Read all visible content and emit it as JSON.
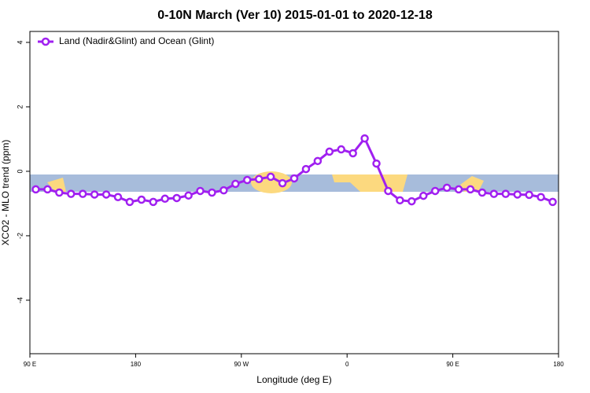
{
  "chart_data": {
    "type": "line",
    "title": "0-10N March (Ver 10)   2015-01-01 to 2020-12-18",
    "xlabel": "Longitude (deg E)",
    "ylabel": "XCO2 - MLO trend (ppm)",
    "x": [
      95,
      105,
      115,
      125,
      135,
      145,
      155,
      165,
      175,
      185,
      195,
      205,
      215,
      225,
      235,
      245,
      255,
      265,
      275,
      285,
      295,
      305,
      315,
      325,
      335,
      345,
      355,
      365,
      375,
      385,
      395,
      405,
      415,
      425,
      435,
      445,
      455,
      465,
      475,
      485,
      495,
      505,
      515,
      525,
      535
    ],
    "series": [
      {
        "name": "Land (Nadir&Glint) and Ocean (Glint)",
        "color": "#a020f0",
        "values": [
          -0.56,
          -0.56,
          -0.66,
          -0.7,
          -0.7,
          -0.72,
          -0.72,
          -0.8,
          -0.95,
          -0.88,
          -0.95,
          -0.85,
          -0.83,
          -0.75,
          -0.61,
          -0.66,
          -0.59,
          -0.39,
          -0.27,
          -0.24,
          -0.17,
          -0.37,
          -0.22,
          0.07,
          0.32,
          0.61,
          0.68,
          0.56,
          1.02,
          0.24,
          -0.61,
          -0.9,
          -0.93,
          -0.76,
          -0.61,
          -0.51,
          -0.56,
          -0.56,
          -0.66,
          -0.7,
          -0.7,
          -0.72,
          -0.73,
          -0.8,
          -0.95
        ]
      }
    ],
    "xlim": [
      90,
      540
    ],
    "xticks": [
      {
        "value": 90,
        "label": "90 E"
      },
      {
        "value": 180,
        "label": "180"
      },
      {
        "value": 270,
        "label": "90 W"
      },
      {
        "value": 360,
        "label": "0"
      },
      {
        "value": 450,
        "label": "90 E"
      },
      {
        "value": 540,
        "label": "180"
      }
    ],
    "ylim": [
      -5.66,
      4.34
    ],
    "yticks": [
      -4,
      -2,
      0,
      2,
      4
    ],
    "legend": "top-left"
  }
}
